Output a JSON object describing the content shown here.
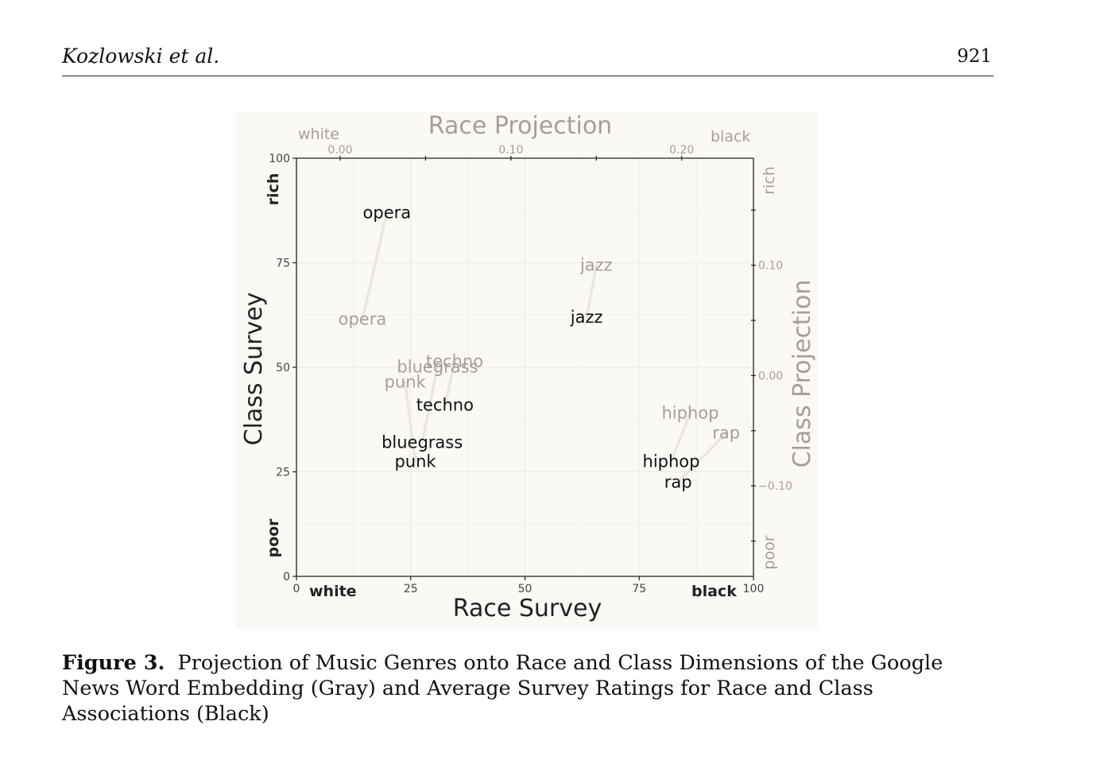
{
  "header": {
    "authors": "Kozlowski et al.",
    "page_number": "921"
  },
  "figure": {
    "label": "Figure 3.",
    "caption": "Projection of Music Genres onto Race and Class Dimensions of the Google News Word Embedding (Gray) and Average Survey Ratings for Race and Class Associations (Black)"
  },
  "chart_data": {
    "type": "scatter",
    "title": "",
    "xlabel": "Race Survey",
    "ylabel": "Class Survey",
    "x2label": "Race Projection",
    "y2label": "Class Projection",
    "xlim": [
      0,
      100
    ],
    "ylim": [
      0,
      100
    ],
    "x2lim": [
      -0.0256,
      0.242
    ],
    "y2lim": [
      -0.182,
      0.197
    ],
    "x_ticks": [
      "0",
      "25",
      "50",
      "75",
      "100"
    ],
    "y_ticks": [
      "0",
      "25",
      "50",
      "75",
      "100"
    ],
    "x2_ticks": [
      "0.00",
      "0.10",
      "0.20"
    ],
    "y2_ticks": [
      "-0.10",
      "0.00",
      "0.10"
    ],
    "x_end_labels": {
      "low": "white",
      "high": "black"
    },
    "y_end_labels": {
      "low": "poor",
      "high": "rich"
    },
    "x2_end_labels": {
      "low": "white",
      "high": "black"
    },
    "y2_end_labels": {
      "low": "poor",
      "high": "rich"
    },
    "colors": {
      "survey": "#111111",
      "projection": "#a89c98",
      "arrow": "#ece6df",
      "grid": "#eeeae4"
    },
    "series": [
      {
        "name": "survey",
        "points": [
          {
            "label": "opera",
            "x": 19.8,
            "y": 87
          },
          {
            "label": "jazz",
            "x": 63.5,
            "y": 62
          },
          {
            "label": "techno",
            "x": 32.5,
            "y": 41
          },
          {
            "label": "bluegrass",
            "x": 27.5,
            "y": 32
          },
          {
            "label": "punk",
            "x": 26,
            "y": 27.5
          },
          {
            "label": "hiphop",
            "x": 82,
            "y": 27.5
          },
          {
            "label": "rap",
            "x": 83.5,
            "y": 22.5
          }
        ]
      },
      {
        "name": "projection",
        "points": [
          {
            "label": "opera",
            "x": 0.013,
            "y": 0.051
          },
          {
            "label": "jazz",
            "x": 0.15,
            "y": 0.1
          },
          {
            "label": "techno",
            "x": 0.067,
            "y": 0.013
          },
          {
            "label": "bluegrass",
            "x": 0.057,
            "y": 0.008
          },
          {
            "label": "punk",
            "x": 0.038,
            "y": -0.006
          },
          {
            "label": "hiphop",
            "x": 0.205,
            "y": -0.034
          },
          {
            "label": "rap",
            "x": 0.226,
            "y": -0.052
          }
        ]
      }
    ]
  }
}
